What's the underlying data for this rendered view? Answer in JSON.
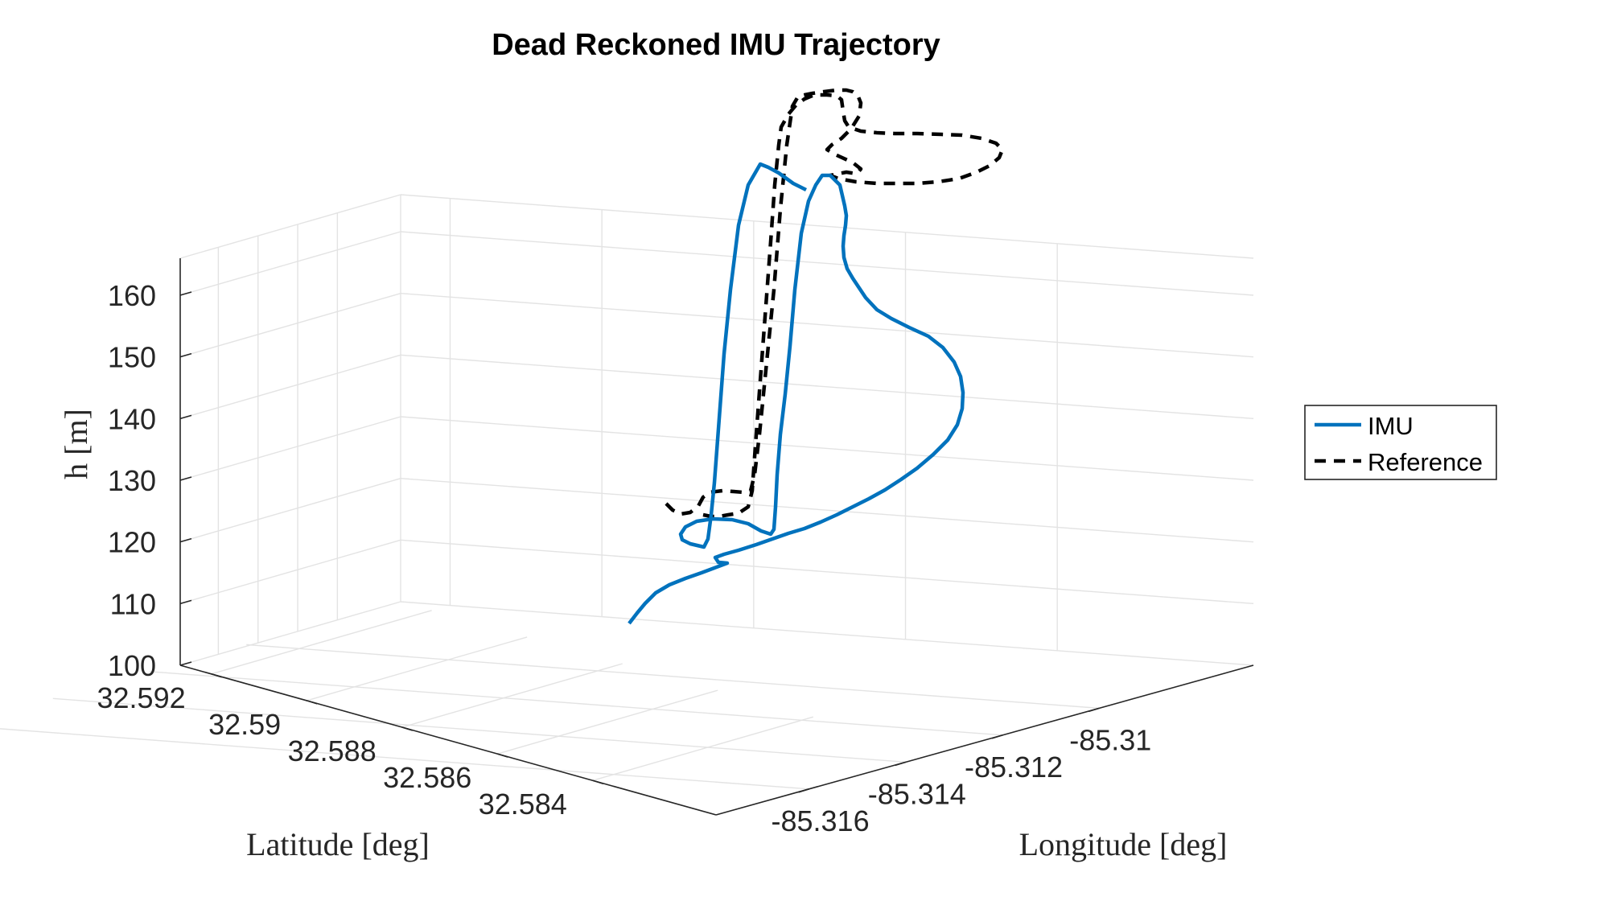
{
  "chart_data": {
    "type": "line3d",
    "title": "Dead Reckoned IMU Trajectory",
    "xlabel": "Longitude [deg]",
    "ylabel": "Latitude [deg]",
    "zlabel": "h [m]",
    "x_ticks": [
      "-85.316",
      "-85.314",
      "-85.312",
      "-85.31"
    ],
    "y_ticks": [
      "32.592",
      "32.59",
      "32.588",
      "32.586",
      "32.584"
    ],
    "z_ticks": [
      "100",
      "110",
      "120",
      "130",
      "140",
      "150",
      "160"
    ],
    "zlim": [
      100,
      166
    ],
    "grid": true,
    "legend": {
      "placement": "right",
      "entries": [
        "IMU",
        "Reference"
      ]
    },
    "series": [
      {
        "name": "IMU",
        "color": "#0072BD",
        "style": "solid"
      },
      {
        "name": "Reference",
        "color": "#000000",
        "style": "dashed"
      }
    ]
  }
}
